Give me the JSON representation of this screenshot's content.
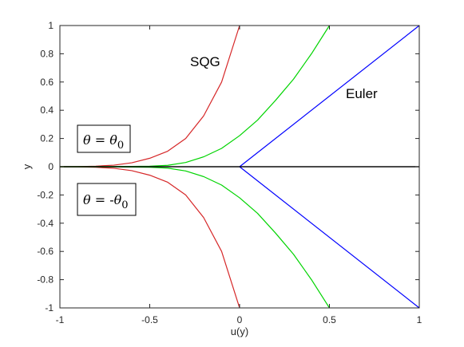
{
  "chart_data": {
    "type": "line",
    "xlabel": "u(y)",
    "ylabel": "y",
    "xlim": [
      -1,
      1
    ],
    "ylim": [
      -1,
      1
    ],
    "x_ticks": [
      "-1",
      "-0.5",
      "0",
      "0.5",
      "1"
    ],
    "y_ticks": [
      "-1",
      "-0.8",
      "-0.6",
      "-0.4",
      "-0.2",
      "0",
      "0.2",
      "0.4",
      "0.6",
      "0.8",
      "1"
    ],
    "grid": false,
    "annotations": {
      "sqg": "SQG",
      "euler": "Euler",
      "box_upper": {
        "lhs": "θ",
        "eq": " = ",
        "rhs": "θ",
        "sub": "0"
      },
      "box_lower": {
        "lhs": "θ",
        "eq": " = -",
        "rhs": "θ",
        "sub": "0"
      }
    },
    "series": [
      {
        "color": "#d62728",
        "upper": {
          "x": [
            -1,
            -0.9,
            -0.8,
            -0.7,
            -0.6,
            -0.5,
            -0.4,
            -0.3,
            -0.2,
            -0.1,
            0
          ],
          "y": [
            0,
            0.0008,
            0.004,
            0.011,
            0.028,
            0.06,
            0.11,
            0.2,
            0.36,
            0.6,
            1
          ]
        },
        "lower": {
          "x": [
            -1,
            -0.9,
            -0.8,
            -0.7,
            -0.6,
            -0.5,
            -0.4,
            -0.3,
            -0.2,
            -0.1,
            0
          ],
          "y": [
            0,
            -0.0008,
            -0.004,
            -0.011,
            -0.028,
            -0.06,
            -0.11,
            -0.2,
            -0.36,
            -0.6,
            -1
          ]
        }
      },
      {
        "color": "#00d400",
        "upper": {
          "x": [
            -1,
            -0.8,
            -0.6,
            -0.5,
            -0.4,
            -0.3,
            -0.2,
            -0.1,
            0,
            0.1,
            0.2,
            0.3,
            0.4,
            0.5
          ],
          "y": [
            0,
            0.0005,
            0.002,
            0.004,
            0.01,
            0.03,
            0.07,
            0.13,
            0.22,
            0.33,
            0.47,
            0.62,
            0.8,
            1
          ]
        },
        "lower": {
          "x": [
            -1,
            -0.8,
            -0.6,
            -0.5,
            -0.4,
            -0.3,
            -0.2,
            -0.1,
            0,
            0.1,
            0.2,
            0.3,
            0.4,
            0.5
          ],
          "y": [
            0,
            -0.0005,
            -0.002,
            -0.004,
            -0.01,
            -0.03,
            -0.07,
            -0.13,
            -0.22,
            -0.33,
            -0.47,
            -0.62,
            -0.8,
            -1
          ]
        }
      },
      {
        "color": "#0000ff",
        "upper": {
          "x": [
            0,
            1
          ],
          "y": [
            0,
            1
          ]
        },
        "lower": {
          "x": [
            0,
            1
          ],
          "y": [
            0,
            -1
          ]
        }
      },
      {
        "color": "#000000",
        "upper": {
          "x": [
            -1,
            1
          ],
          "y": [
            0,
            0
          ]
        },
        "lower": {
          "x": [
            -1,
            1
          ],
          "y": [
            0,
            0
          ]
        }
      }
    ]
  }
}
